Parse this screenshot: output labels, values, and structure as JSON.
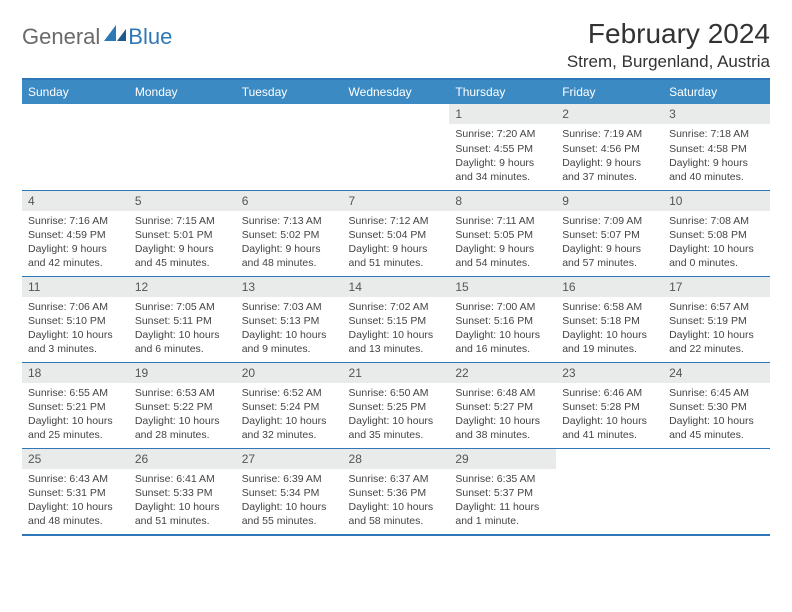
{
  "logo": {
    "text1": "General",
    "text2": "Blue"
  },
  "header": {
    "month_title": "February 2024",
    "location": "Strem, Burgenland, Austria"
  },
  "colors": {
    "accent": "#3b8ac4",
    "rule": "#2f78b8",
    "daynum_bg": "#e9eaea",
    "text": "#333333",
    "logo_gray": "#6a6a6a"
  },
  "weekdays": [
    "Sunday",
    "Monday",
    "Tuesday",
    "Wednesday",
    "Thursday",
    "Friday",
    "Saturday"
  ],
  "weeks": [
    [
      null,
      null,
      null,
      null,
      {
        "d": "1",
        "sr": "7:20 AM",
        "ss": "4:55 PM",
        "dl": "9 hours and 34 minutes."
      },
      {
        "d": "2",
        "sr": "7:19 AM",
        "ss": "4:56 PM",
        "dl": "9 hours and 37 minutes."
      },
      {
        "d": "3",
        "sr": "7:18 AM",
        "ss": "4:58 PM",
        "dl": "9 hours and 40 minutes."
      }
    ],
    [
      {
        "d": "4",
        "sr": "7:16 AM",
        "ss": "4:59 PM",
        "dl": "9 hours and 42 minutes."
      },
      {
        "d": "5",
        "sr": "7:15 AM",
        "ss": "5:01 PM",
        "dl": "9 hours and 45 minutes."
      },
      {
        "d": "6",
        "sr": "7:13 AM",
        "ss": "5:02 PM",
        "dl": "9 hours and 48 minutes."
      },
      {
        "d": "7",
        "sr": "7:12 AM",
        "ss": "5:04 PM",
        "dl": "9 hours and 51 minutes."
      },
      {
        "d": "8",
        "sr": "7:11 AM",
        "ss": "5:05 PM",
        "dl": "9 hours and 54 minutes."
      },
      {
        "d": "9",
        "sr": "7:09 AM",
        "ss": "5:07 PM",
        "dl": "9 hours and 57 minutes."
      },
      {
        "d": "10",
        "sr": "7:08 AM",
        "ss": "5:08 PM",
        "dl": "10 hours and 0 minutes."
      }
    ],
    [
      {
        "d": "11",
        "sr": "7:06 AM",
        "ss": "5:10 PM",
        "dl": "10 hours and 3 minutes."
      },
      {
        "d": "12",
        "sr": "7:05 AM",
        "ss": "5:11 PM",
        "dl": "10 hours and 6 minutes."
      },
      {
        "d": "13",
        "sr": "7:03 AM",
        "ss": "5:13 PM",
        "dl": "10 hours and 9 minutes."
      },
      {
        "d": "14",
        "sr": "7:02 AM",
        "ss": "5:15 PM",
        "dl": "10 hours and 13 minutes."
      },
      {
        "d": "15",
        "sr": "7:00 AM",
        "ss": "5:16 PM",
        "dl": "10 hours and 16 minutes."
      },
      {
        "d": "16",
        "sr": "6:58 AM",
        "ss": "5:18 PM",
        "dl": "10 hours and 19 minutes."
      },
      {
        "d": "17",
        "sr": "6:57 AM",
        "ss": "5:19 PM",
        "dl": "10 hours and 22 minutes."
      }
    ],
    [
      {
        "d": "18",
        "sr": "6:55 AM",
        "ss": "5:21 PM",
        "dl": "10 hours and 25 minutes."
      },
      {
        "d": "19",
        "sr": "6:53 AM",
        "ss": "5:22 PM",
        "dl": "10 hours and 28 minutes."
      },
      {
        "d": "20",
        "sr": "6:52 AM",
        "ss": "5:24 PM",
        "dl": "10 hours and 32 minutes."
      },
      {
        "d": "21",
        "sr": "6:50 AM",
        "ss": "5:25 PM",
        "dl": "10 hours and 35 minutes."
      },
      {
        "d": "22",
        "sr": "6:48 AM",
        "ss": "5:27 PM",
        "dl": "10 hours and 38 minutes."
      },
      {
        "d": "23",
        "sr": "6:46 AM",
        "ss": "5:28 PM",
        "dl": "10 hours and 41 minutes."
      },
      {
        "d": "24",
        "sr": "6:45 AM",
        "ss": "5:30 PM",
        "dl": "10 hours and 45 minutes."
      }
    ],
    [
      {
        "d": "25",
        "sr": "6:43 AM",
        "ss": "5:31 PM",
        "dl": "10 hours and 48 minutes."
      },
      {
        "d": "26",
        "sr": "6:41 AM",
        "ss": "5:33 PM",
        "dl": "10 hours and 51 minutes."
      },
      {
        "d": "27",
        "sr": "6:39 AM",
        "ss": "5:34 PM",
        "dl": "10 hours and 55 minutes."
      },
      {
        "d": "28",
        "sr": "6:37 AM",
        "ss": "5:36 PM",
        "dl": "10 hours and 58 minutes."
      },
      {
        "d": "29",
        "sr": "6:35 AM",
        "ss": "5:37 PM",
        "dl": "11 hours and 1 minute."
      },
      null,
      null
    ]
  ],
  "labels": {
    "sunrise": "Sunrise: ",
    "sunset": "Sunset: ",
    "daylight": "Daylight: "
  }
}
